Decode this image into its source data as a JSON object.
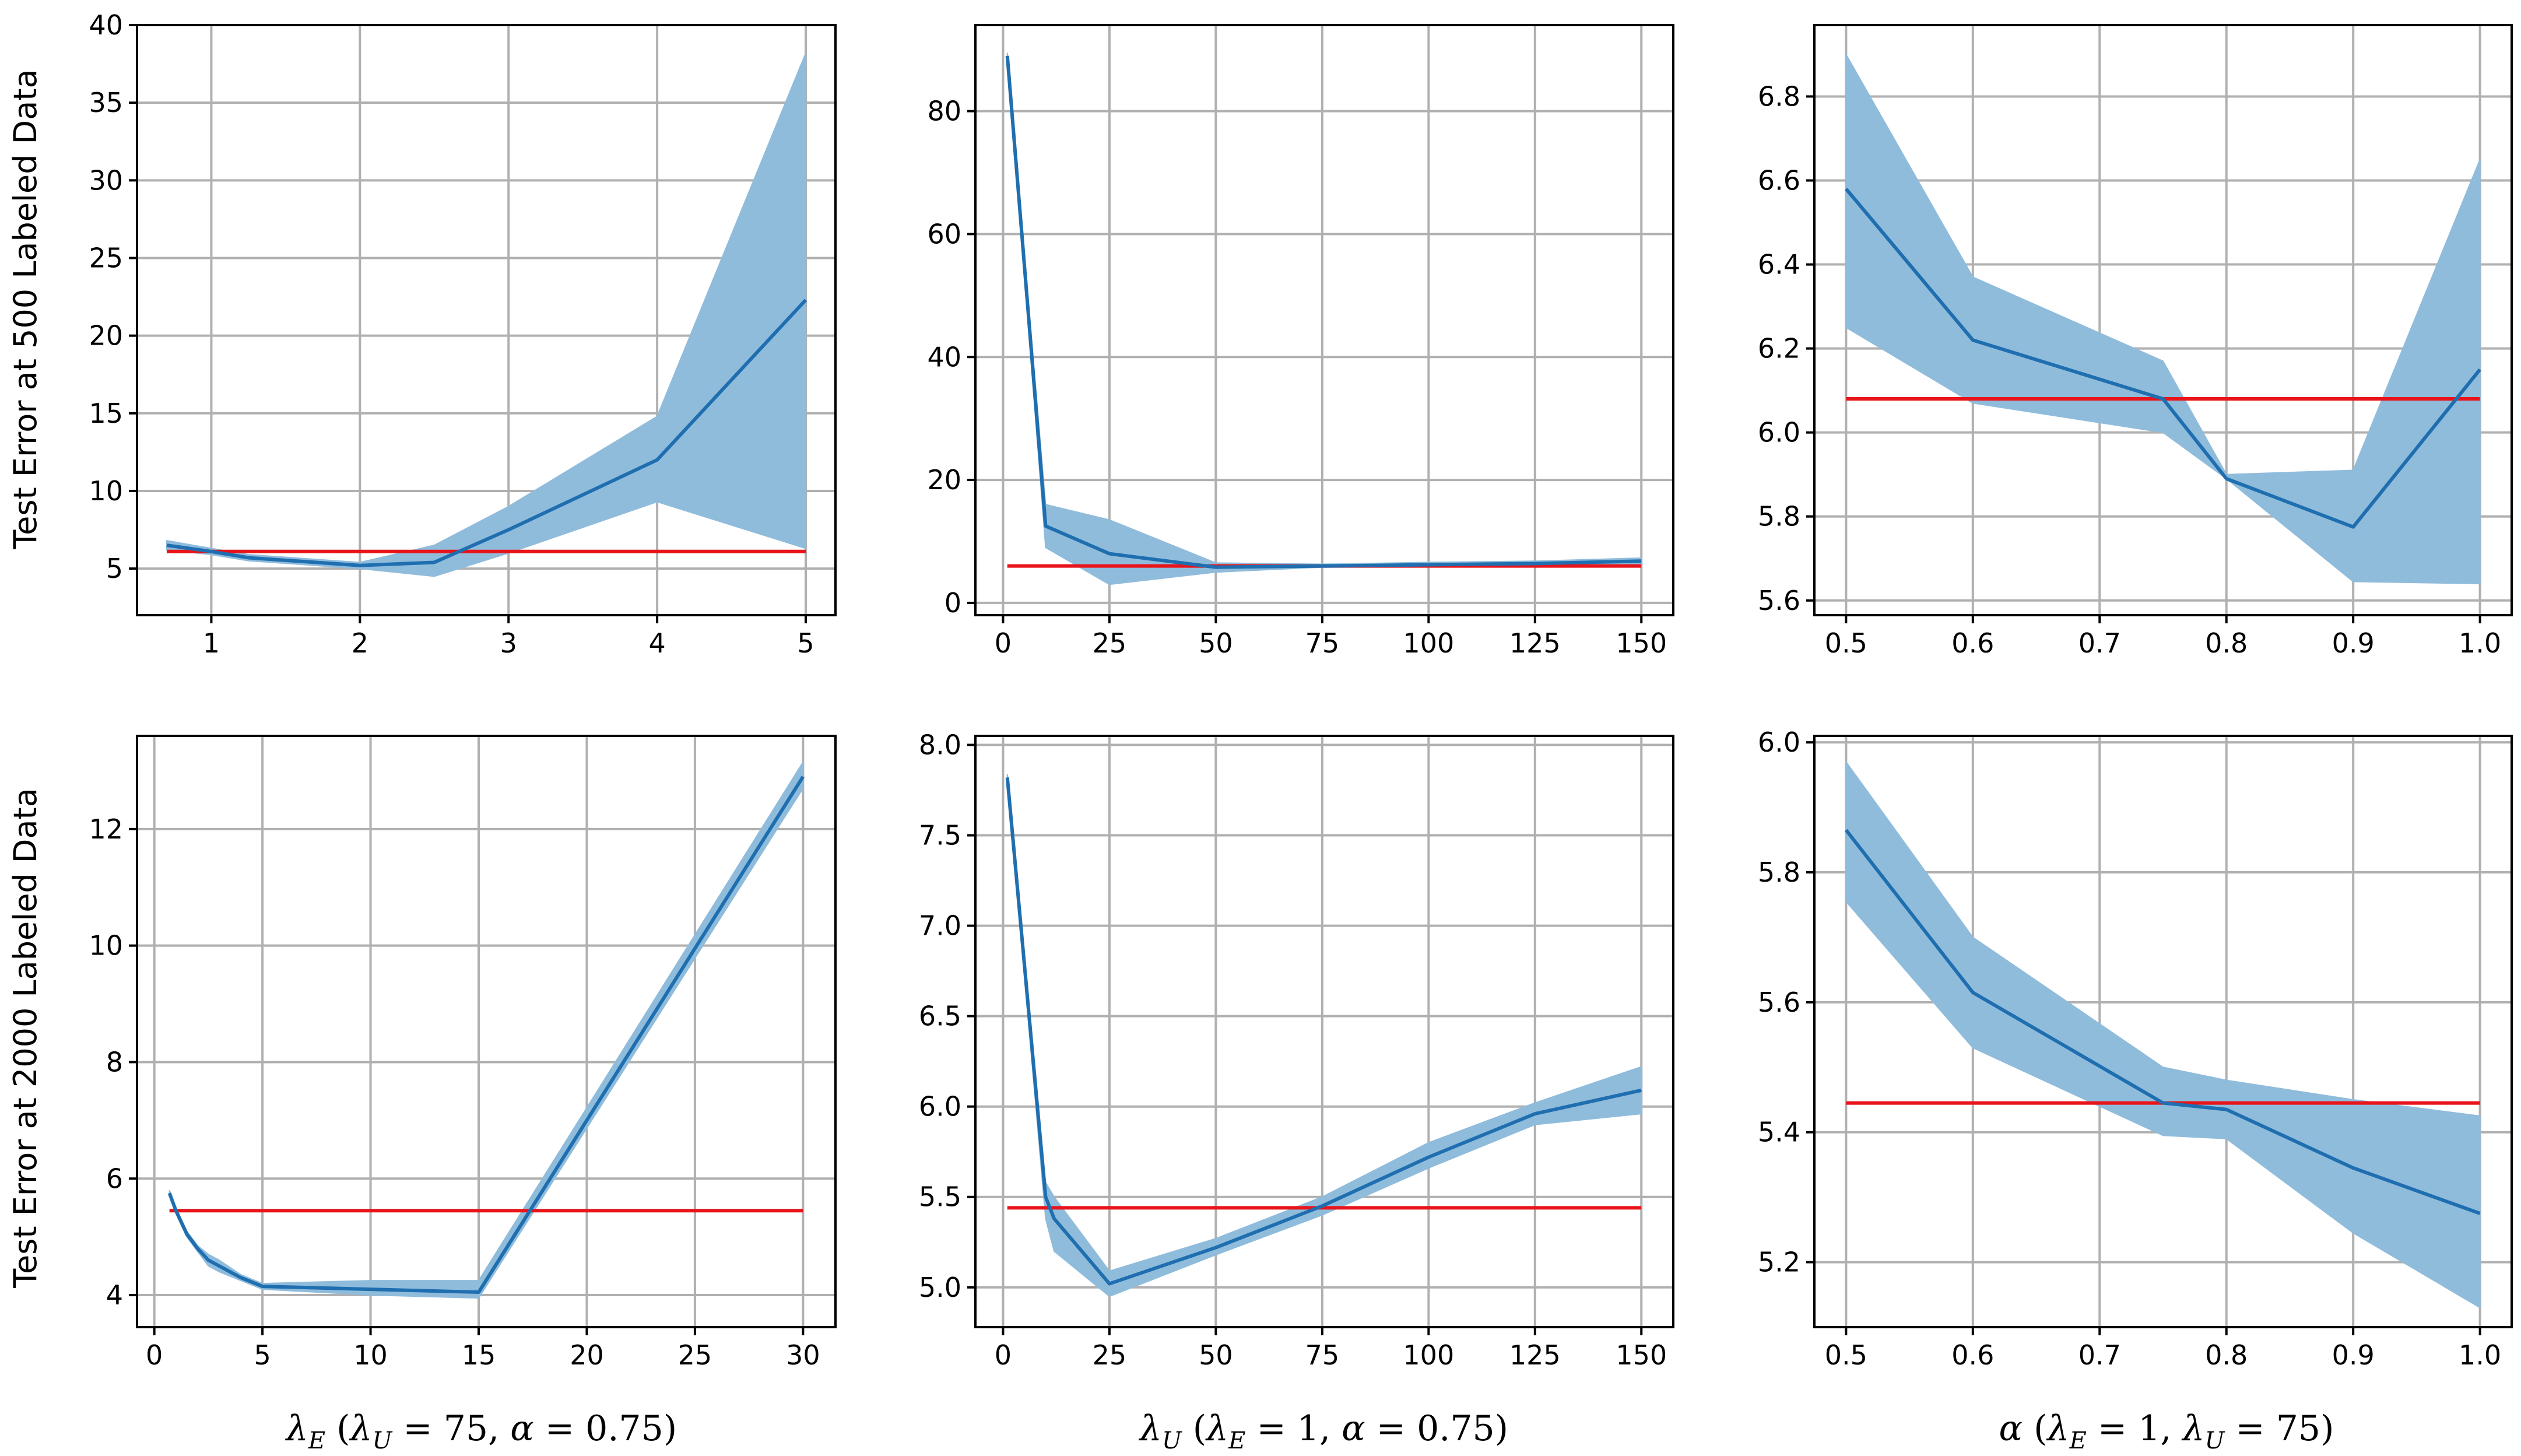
{
  "colors": {
    "band": "#90bcdc",
    "line": "#1f6fb0",
    "baseline": "#e8141a",
    "grid": "#b0b0b0"
  },
  "ylabels": [
    "Test Error at 500 Labeled Data",
    "Test Error at 2000 Labeled Data"
  ],
  "xlabels": [
    {
      "main": "λ",
      "sub": "E",
      "cond": " (",
      "c1": "λ",
      "c1sub": "U",
      "c1val": " = 75, ",
      "c2": "α",
      "c2val": " = 0.75)"
    },
    {
      "main": "λ",
      "sub": "U",
      "cond": " (",
      "c1": "λ",
      "c1sub": "E",
      "c1val": " = 1, ",
      "c2": "α",
      "c2val": " = 0.75)"
    },
    {
      "main": "α",
      "sub": "",
      "cond": " (",
      "c1": "λ",
      "c1sub": "E",
      "c1val": " = 1, ",
      "c2": "λ",
      "c2sub": "U",
      "c2val": " = 75)"
    }
  ],
  "chart_data": [
    {
      "type": "line",
      "row": 0,
      "col": 0,
      "x": [
        0.7,
        1,
        1.25,
        2,
        2.5,
        3,
        4,
        5
      ],
      "mean": [
        6.5,
        6.1,
        5.7,
        5.2,
        5.4,
        7.5,
        12.0,
        22.3
      ],
      "lower": [
        6.2,
        5.9,
        5.5,
        5.0,
        4.5,
        6.0,
        9.3,
        6.3
      ],
      "upper": [
        6.8,
        6.3,
        5.9,
        5.4,
        6.5,
        9.0,
        14.8,
        38.2
      ],
      "baseline": 6.1,
      "xlim": [
        0.5,
        5.2
      ],
      "ylim": [
        2.0,
        40.0
      ],
      "xticks": [
        1,
        2,
        3,
        4,
        5
      ],
      "xticklabels": [
        "1",
        "2",
        "3",
        "4",
        "5"
      ],
      "yticks": [
        5,
        10,
        15,
        20,
        25,
        30,
        35,
        40
      ],
      "yticklabels": [
        "5",
        "10",
        "15",
        "20",
        "25",
        "30",
        "35",
        "40"
      ]
    },
    {
      "type": "line",
      "row": 0,
      "col": 1,
      "x": [
        1,
        10,
        25,
        50,
        75,
        100,
        125,
        150
      ],
      "mean": [
        89.0,
        12.5,
        8.0,
        5.8,
        6.0,
        6.2,
        6.4,
        6.8
      ],
      "lower": [
        88.5,
        9.0,
        3.0,
        5.0,
        5.8,
        5.9,
        6.0,
        6.3
      ],
      "upper": [
        89.5,
        16.0,
        13.5,
        6.5,
        6.3,
        6.6,
        6.8,
        7.3
      ],
      "baseline": 6.0,
      "xlim": [
        -6.5,
        157.5
      ],
      "ylim": [
        -2.0,
        94.0
      ],
      "xticks": [
        0,
        25,
        50,
        75,
        100,
        125,
        150
      ],
      "xticklabels": [
        "0",
        "25",
        "50",
        "75",
        "100",
        "125",
        "150"
      ],
      "yticks": [
        0,
        20,
        40,
        60,
        80
      ],
      "yticklabels": [
        "0",
        "20",
        "40",
        "60",
        "80"
      ]
    },
    {
      "type": "line",
      "row": 0,
      "col": 2,
      "x": [
        0.5,
        0.6,
        0.75,
        0.8,
        0.9,
        1.0
      ],
      "mean": [
        6.58,
        6.22,
        6.08,
        5.89,
        5.775,
        6.15
      ],
      "lower": [
        6.25,
        6.07,
        6.0,
        5.89,
        5.645,
        5.64
      ],
      "upper": [
        6.9,
        6.37,
        6.17,
        5.9,
        5.91,
        6.65
      ],
      "baseline": 6.08,
      "xlim": [
        0.475,
        1.025
      ],
      "ylim": [
        5.565,
        6.97
      ],
      "xticks": [
        0.5,
        0.6,
        0.7,
        0.8,
        0.9,
        1.0
      ],
      "xticklabels": [
        "0.5",
        "0.6",
        "0.7",
        "0.8",
        "0.9",
        "1.0"
      ],
      "yticks": [
        5.6,
        5.8,
        6.0,
        6.2,
        6.4,
        6.6,
        6.8
      ],
      "yticklabels": [
        "5.6",
        "5.8",
        "6.0",
        "6.2",
        "6.4",
        "6.6",
        "6.8"
      ]
    },
    {
      "type": "line",
      "row": 1,
      "col": 0,
      "x": [
        0.7,
        1,
        1.5,
        2,
        2.5,
        3,
        4,
        5,
        10,
        15,
        30
      ],
      "mean": [
        5.75,
        5.45,
        5.05,
        4.8,
        4.6,
        4.5,
        4.3,
        4.15,
        4.1,
        4.05,
        12.9
      ],
      "lower": [
        5.7,
        5.4,
        5.0,
        4.75,
        4.5,
        4.4,
        4.25,
        4.1,
        4.0,
        3.95,
        12.7
      ],
      "upper": [
        5.8,
        5.5,
        5.1,
        4.85,
        4.7,
        4.6,
        4.35,
        4.2,
        4.25,
        4.25,
        13.15
      ],
      "baseline": 5.45,
      "xlim": [
        -0.8,
        31.5
      ],
      "ylim": [
        3.45,
        13.6
      ],
      "xticks": [
        0,
        5,
        10,
        15,
        20,
        25,
        30
      ],
      "xticklabels": [
        "0",
        "5",
        "10",
        "15",
        "20",
        "25",
        "30"
      ],
      "yticks": [
        4,
        6,
        8,
        10,
        12
      ],
      "yticklabels": [
        "4",
        "6",
        "8",
        "10",
        "12"
      ]
    },
    {
      "type": "line",
      "row": 1,
      "col": 1,
      "x": [
        1,
        10,
        12,
        25,
        50,
        75,
        100,
        125,
        150
      ],
      "mean": [
        7.82,
        5.5,
        5.38,
        5.02,
        5.22,
        5.45,
        5.72,
        5.96,
        6.09
      ],
      "lower": [
        7.8,
        5.38,
        5.2,
        4.95,
        5.18,
        5.4,
        5.66,
        5.9,
        5.96
      ],
      "upper": [
        7.84,
        5.58,
        5.5,
        5.09,
        5.27,
        5.5,
        5.8,
        6.02,
        6.22
      ],
      "baseline": 5.44,
      "xlim": [
        -6.5,
        157.5
      ],
      "ylim": [
        4.78,
        8.05
      ],
      "xticks": [
        0,
        25,
        50,
        75,
        100,
        125,
        150
      ],
      "xticklabels": [
        "0",
        "25",
        "50",
        "75",
        "100",
        "125",
        "150"
      ],
      "yticks": [
        5.0,
        5.5,
        6.0,
        6.5,
        7.0,
        7.5,
        8.0
      ],
      "yticklabels": [
        "5.0",
        "5.5",
        "6.0",
        "6.5",
        "7.0",
        "7.5",
        "8.0"
      ]
    },
    {
      "type": "line",
      "row": 1,
      "col": 2,
      "x": [
        0.5,
        0.6,
        0.75,
        0.8,
        0.9,
        1.0
      ],
      "mean": [
        5.865,
        5.615,
        5.445,
        5.435,
        5.345,
        5.275
      ],
      "lower": [
        5.755,
        5.53,
        5.395,
        5.39,
        5.245,
        5.13
      ],
      "upper": [
        5.97,
        5.7,
        5.5,
        5.48,
        5.45,
        5.425
      ],
      "baseline": 5.445,
      "xlim": [
        0.475,
        1.025
      ],
      "ylim": [
        5.1,
        6.01
      ],
      "xticks": [
        0.5,
        0.6,
        0.7,
        0.8,
        0.9,
        1.0
      ],
      "xticklabels": [
        "0.5",
        "0.6",
        "0.7",
        "0.8",
        "0.9",
        "1.0"
      ],
      "yticks": [
        5.2,
        5.4,
        5.6,
        5.8,
        6.0
      ],
      "yticklabels": [
        "5.2",
        "5.4",
        "5.6",
        "5.8",
        "6.0"
      ]
    }
  ]
}
